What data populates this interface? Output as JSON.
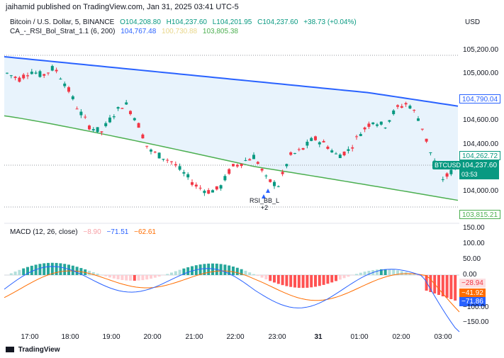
{
  "header": {
    "publish": "jaihamid published on TradingView.com, Jan 31, 2025 03:41 UTC-5"
  },
  "symbol": {
    "name": "Bitcoin / U.S. Dollar, 5, BINANCE",
    "open": "O104,208.80",
    "high": "H104,237.60",
    "low": "L104,201.95",
    "close": "C104,237.60",
    "change": "+38.73 (+0.04%)"
  },
  "indicator": {
    "name": "CA_-_RSI_Bol_Strat_1.1 (6, 200)",
    "v1": "104,767.48",
    "v2": "100,730.88",
    "v3": "103,805.38"
  },
  "macd": {
    "name": "MACD (12, 26, close)",
    "v1": "−8.90",
    "v2": "−71.51",
    "v3": "−62.61"
  },
  "currency": "USD",
  "price_ticks": [
    "105,200.00",
    "105,000.00",
    "104,600.00",
    "104,400.00",
    "104,200.00",
    "104,000.00"
  ],
  "macd_ticks": [
    "150.00",
    "100.00",
    "50.00",
    "0.00",
    "−100.00",
    "−150.00"
  ],
  "badges": {
    "upper": "104,790.04",
    "mid": "104,262.72",
    "price": "104,237.60",
    "countdown": "03:53",
    "lower": "103,815.21",
    "macd_a": "−28.94",
    "macd_b": "−41.92",
    "macd_c": "−71.86"
  },
  "symbol_tag": "BTCUSD",
  "signal": {
    "line1": "RSI_BB_L",
    "line2": "+2"
  },
  "time_ticks": [
    "17:00",
    "18:00",
    "19:00",
    "20:00",
    "21:00",
    "22:00",
    "23:00",
    "31",
    "01:00",
    "02:00",
    "03:00"
  ],
  "footer": "TradingView",
  "colors": {
    "up": "#089981",
    "down": "#f23645",
    "upper_band": "#2962ff",
    "lower_band": "#4caf50",
    "band_fill": "#e8f3fc",
    "macd": "#2962ff",
    "signal": "#ff6d00"
  }
}
